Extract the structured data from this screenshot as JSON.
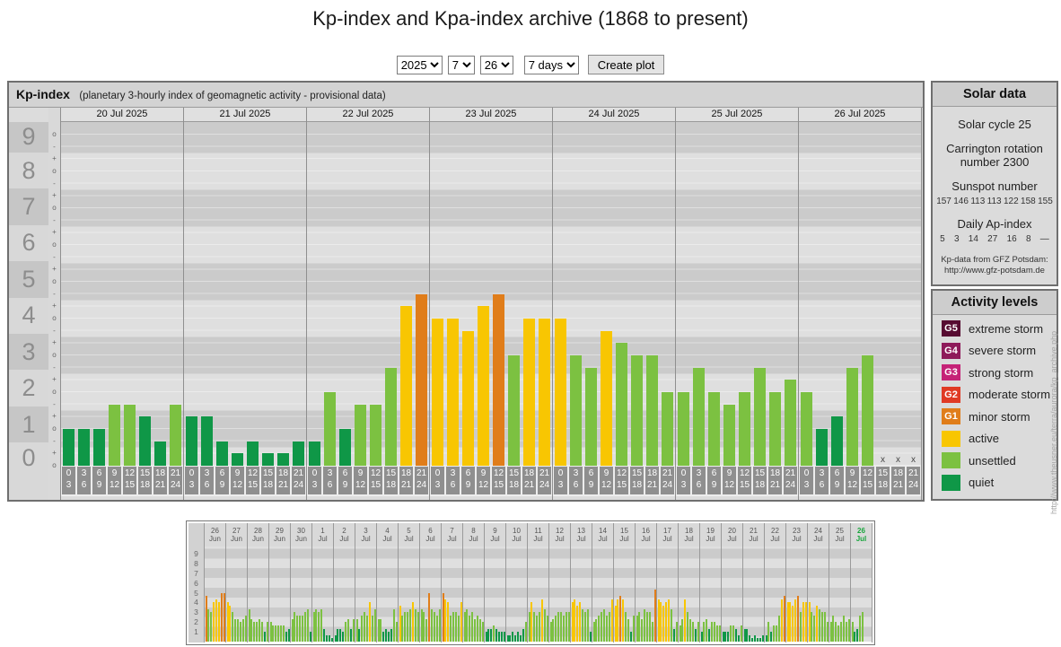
{
  "page": {
    "title": "Kp-index and Kpa-index archive (1868 to present)"
  },
  "controls": {
    "year": "2025",
    "month": "7",
    "day": "26",
    "range": "7 days",
    "create_button": "Create plot"
  },
  "main_chart": {
    "title": "Kp-index",
    "subtitle": "(planetary 3-hourly index of geomagnetic activity - provisional data)",
    "tick_glyphs": {
      "exact": "o",
      "plus": "+",
      "minus": "-"
    },
    "missing_marker": "x"
  },
  "chart_data": [
    {
      "type": "bar",
      "title": "Kp-index",
      "subtitle": "(planetary 3-hourly index of geomagnetic activity - provisional data)",
      "ylabel": "Kp",
      "ylim": [
        0,
        9.35
      ],
      "yticks": [
        0,
        1,
        2,
        3,
        4,
        5,
        6,
        7,
        8,
        9
      ],
      "interval_labels": [
        [
          "0",
          "3"
        ],
        [
          "3",
          "6"
        ],
        [
          "6",
          "9"
        ],
        [
          "9",
          "12"
        ],
        [
          "12",
          "15"
        ],
        [
          "15",
          "18"
        ],
        [
          "18",
          "21"
        ],
        [
          "21",
          "24"
        ]
      ],
      "days": [
        {
          "date": "20 Jul 2025",
          "kp": [
            1.0,
            1.0,
            1.0,
            1.67,
            1.67,
            1.33,
            0.67,
            1.67
          ]
        },
        {
          "date": "21 Jul 2025",
          "kp": [
            1.33,
            1.33,
            0.67,
            0.33,
            0.67,
            0.33,
            0.33,
            0.67
          ]
        },
        {
          "date": "22 Jul 2025",
          "kp": [
            0.67,
            2.0,
            1.0,
            1.67,
            1.67,
            2.67,
            4.33,
            4.67
          ]
        },
        {
          "date": "23 Jul 2025",
          "kp": [
            4.0,
            4.0,
            3.67,
            4.33,
            4.67,
            3.0,
            4.0,
            4.0
          ]
        },
        {
          "date": "24 Jul 2025",
          "kp": [
            4.0,
            3.0,
            2.67,
            3.67,
            3.33,
            3.0,
            3.0,
            2.0
          ]
        },
        {
          "date": "25 Jul 2025",
          "kp": [
            2.0,
            2.67,
            2.0,
            1.67,
            2.0,
            2.67,
            2.0,
            2.33
          ]
        },
        {
          "date": "26 Jul 2025",
          "kp": [
            2.0,
            1.0,
            1.33,
            2.67,
            3.0,
            null,
            null,
            null
          ]
        }
      ]
    },
    {
      "type": "bar",
      "title": "30-day overview 26 Jun - 26 Jul 2025 (approximate values)",
      "ylim": [
        0,
        9.7
      ],
      "yticks": [
        1,
        2,
        3,
        4,
        5,
        6,
        7,
        8,
        9
      ],
      "days": [
        {
          "day": "26",
          "month": "Jun",
          "kp": [
            4.67,
            3.33,
            3,
            4,
            4.33,
            4,
            5,
            5
          ]
        },
        {
          "day": "27",
          "month": "Jun",
          "kp": [
            4,
            3.67,
            3,
            2.33,
            2.33,
            2,
            2.33,
            2.67
          ]
        },
        {
          "day": "28",
          "month": "Jun",
          "kp": [
            3.33,
            2.33,
            2,
            2,
            2.33,
            2,
            1,
            2
          ]
        },
        {
          "day": "29",
          "month": "Jun",
          "kp": [
            2,
            1.67,
            1.67,
            1.67,
            1.67,
            1.67,
            1,
            1.33
          ]
        },
        {
          "day": "30",
          "month": "Jun",
          "kp": [
            2.33,
            3,
            2.67,
            2.67,
            2.67,
            3,
            3.33,
            1
          ]
        },
        {
          "day": "1",
          "month": "Jul",
          "kp": [
            3,
            3.33,
            3,
            3.33,
            1.33,
            0.67,
            0.67,
            0.33
          ]
        },
        {
          "day": "2",
          "month": "Jul",
          "kp": [
            0.67,
            1.33,
            1.33,
            1,
            2,
            2.33,
            1.33,
            2.33
          ]
        },
        {
          "day": "3",
          "month": "Jul",
          "kp": [
            2.33,
            1.33,
            2.67,
            3,
            2.67,
            4,
            2.67,
            3.33
          ]
        },
        {
          "day": "4",
          "month": "Jul",
          "kp": [
            2.33,
            2.33,
            1,
            1.33,
            1,
            1.33,
            3.33,
            2
          ]
        },
        {
          "day": "5",
          "month": "Jul",
          "kp": [
            3.67,
            2.67,
            3,
            3,
            3.33,
            4,
            3.33,
            3
          ]
        },
        {
          "day": "6",
          "month": "Jul",
          "kp": [
            3.33,
            3,
            2.33,
            5,
            3.33,
            3,
            2.67,
            3.33
          ]
        },
        {
          "day": "7",
          "month": "Jul",
          "kp": [
            5,
            4.33,
            4,
            2.67,
            3,
            3,
            2.67,
            4
          ]
        },
        {
          "day": "8",
          "month": "Jul",
          "kp": [
            3,
            3.33,
            2.67,
            3,
            2.33,
            2.67,
            2.33,
            2
          ]
        },
        {
          "day": "9",
          "month": "Jul",
          "kp": [
            1,
            1.33,
            1.33,
            1.67,
            1.33,
            1,
            1,
            1
          ]
        },
        {
          "day": "10",
          "month": "Jul",
          "kp": [
            0.67,
            0.67,
            1,
            0.67,
            1,
            0.67,
            1.33,
            2
          ]
        },
        {
          "day": "11",
          "month": "Jul",
          "kp": [
            3,
            4,
            3,
            2.67,
            3,
            4.33,
            3.33,
            2.67
          ]
        },
        {
          "day": "12",
          "month": "Jul",
          "kp": [
            2,
            2.33,
            2.67,
            3,
            3,
            2.67,
            3,
            3
          ]
        },
        {
          "day": "13",
          "month": "Jul",
          "kp": [
            4,
            4.33,
            3.67,
            4,
            3.33,
            3,
            3.33,
            1
          ]
        },
        {
          "day": "14",
          "month": "Jul",
          "kp": [
            2,
            2.33,
            2.67,
            3,
            3.33,
            2.67,
            3,
            4.33
          ]
        },
        {
          "day": "15",
          "month": "Jul",
          "kp": [
            3.67,
            4.33,
            4.67,
            4.33,
            3,
            2.33,
            1,
            2.67
          ]
        },
        {
          "day": "16",
          "month": "Jul",
          "kp": [
            2.67,
            3,
            2.33,
            3.33,
            3,
            3,
            2,
            5.33
          ]
        },
        {
          "day": "17",
          "month": "Jul",
          "kp": [
            4.33,
            4,
            3.67,
            4,
            4.33,
            3.33,
            1.33,
            2
          ]
        },
        {
          "day": "18",
          "month": "Jul",
          "kp": [
            1.67,
            2.33,
            4.33,
            3,
            2.33,
            2,
            1.33,
            2
          ]
        },
        {
          "day": "19",
          "month": "Jul",
          "kp": [
            1,
            2,
            2.33,
            1.33,
            2,
            2,
            1.67,
            1.67
          ]
        },
        {
          "day": "20",
          "month": "Jul",
          "kp": [
            1,
            1,
            1,
            1.67,
            1.67,
            1.33,
            0.67,
            1.67
          ]
        },
        {
          "day": "21",
          "month": "Jul",
          "kp": [
            1.33,
            1.33,
            0.67,
            0.33,
            0.67,
            0.33,
            0.33,
            0.67
          ]
        },
        {
          "day": "22",
          "month": "Jul",
          "kp": [
            0.67,
            2,
            1,
            1.67,
            1.67,
            2.67,
            4.33,
            4.67
          ]
        },
        {
          "day": "23",
          "month": "Jul",
          "kp": [
            4,
            4,
            3.67,
            4.33,
            4.67,
            3,
            4,
            4
          ]
        },
        {
          "day": "24",
          "month": "Jul",
          "kp": [
            4,
            3,
            2.67,
            3.67,
            3.33,
            3,
            3,
            2
          ]
        },
        {
          "day": "25",
          "month": "Jul",
          "kp": [
            2,
            2.67,
            2,
            1.67,
            2,
            2.67,
            2,
            2.33
          ]
        },
        {
          "day": "26",
          "month": "Jul",
          "kp": [
            2,
            1,
            1.33,
            2.67,
            3,
            null,
            null,
            null
          ],
          "selected": true
        }
      ]
    }
  ],
  "solar_data": {
    "title": "Solar data",
    "solar_cycle": "Solar cycle 25",
    "carrington": "Carrington rotation number 2300",
    "sunspot_label": "Sunspot number",
    "sunspot_values": [
      "157",
      "146",
      "113",
      "113",
      "122",
      "158",
      "155"
    ],
    "ap_label": "Daily Ap-index",
    "ap_values": [
      "5",
      "3",
      "14",
      "27",
      "16",
      "8",
      "—"
    ],
    "source_line1": "Kp-data from GFZ Potsdam:",
    "source_line2": "http://www.gfz-potsdam.de"
  },
  "activity_levels": {
    "title": "Activity levels",
    "items": [
      {
        "code": "G5",
        "label": "extreme storm",
        "color": "#570b31",
        "min_kp": 8.67
      },
      {
        "code": "G4",
        "label": "severe storm",
        "color": "#8e1a5a",
        "min_kp": 7.67
      },
      {
        "code": "G3",
        "label": "strong storm",
        "color": "#c52277",
        "min_kp": 6.67
      },
      {
        "code": "G2",
        "label": "moderate storm",
        "color": "#e03a24",
        "min_kp": 5.67
      },
      {
        "code": "G1",
        "label": "minor storm",
        "color": "#e07d1a",
        "min_kp": 4.67
      },
      {
        "code": "",
        "label": "active",
        "color": "#f8c602",
        "min_kp": 3.67
      },
      {
        "code": "",
        "label": "unsettled",
        "color": "#7cc141",
        "min_kp": 1.67
      },
      {
        "code": "",
        "label": "quiet",
        "color": "#0f9747",
        "min_kp": 0
      }
    ]
  },
  "watermark": "http://www.theusner.eu/terra/aurora/kp_archive.php"
}
